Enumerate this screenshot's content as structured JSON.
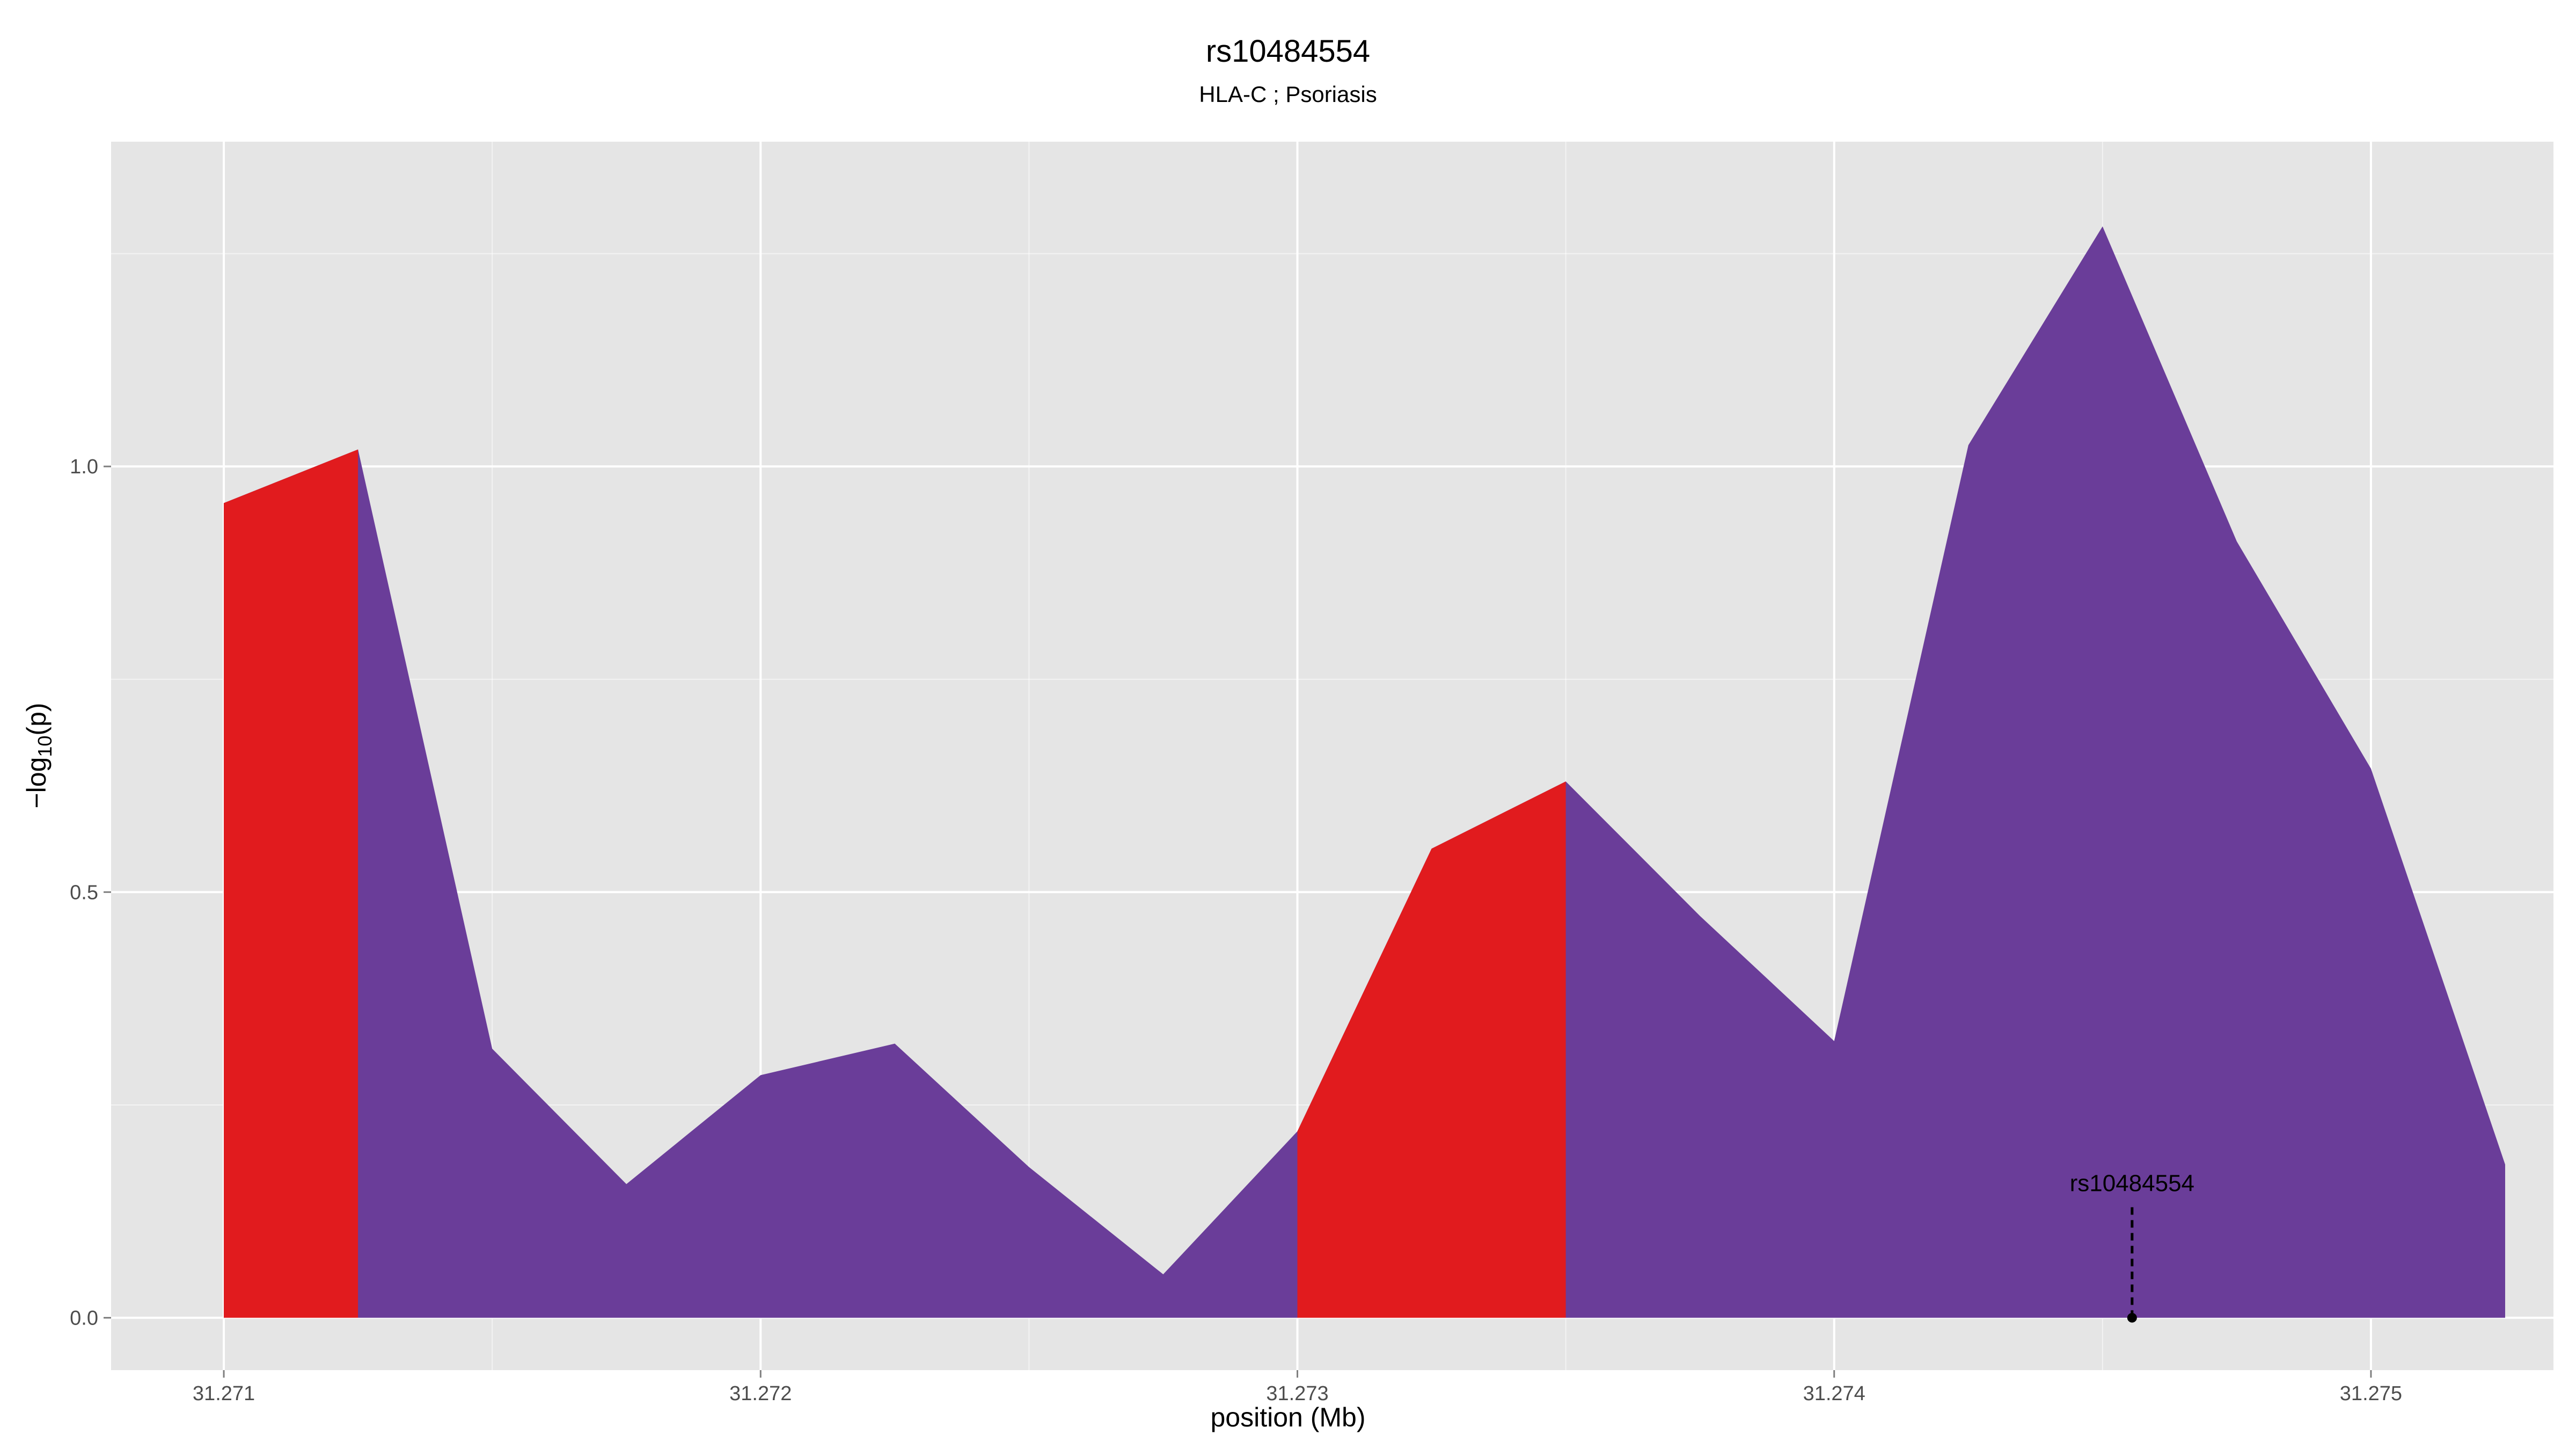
{
  "chart_data": {
    "type": "area",
    "title": "rs10484554",
    "subtitle": "HLA-C ; Psoriasis",
    "xlabel": "position (Mb)",
    "ylabel": "-log10(p)",
    "xlim": [
      31.27079,
      31.27534
    ],
    "ylim": [
      -0.0615,
      1.3815
    ],
    "x_ticks": [
      31.271,
      31.272,
      31.273,
      31.274,
      31.275
    ],
    "x_tick_labels": [
      "31.271",
      "31.272",
      "31.273",
      "31.274",
      "31.275"
    ],
    "y_ticks": [
      0.0,
      0.5,
      1.0
    ],
    "y_tick_labels": [
      "0.0",
      "0.5",
      "1.0"
    ],
    "grid": true,
    "x": [
      31.271,
      31.27125,
      31.2715,
      31.27175,
      31.272,
      31.27225,
      31.2725,
      31.27275,
      31.273,
      31.27325,
      31.2735,
      31.27375,
      31.274,
      31.27425,
      31.2745,
      31.27475,
      31.275,
      31.27525
    ],
    "y": [
      0.957,
      1.02,
      0.316,
      0.157,
      0.285,
      0.322,
      0.177,
      0.051,
      0.219,
      0.551,
      0.63,
      0.472,
      0.325,
      1.025,
      1.282,
      0.912,
      0.645,
      0.18
    ],
    "highlight_regions": [
      {
        "from": 31.271,
        "to": 31.27125
      },
      {
        "from": 31.273,
        "to": 31.2735
      }
    ],
    "colors": {
      "area": "#6a3d99",
      "highlight": "#e11b1e",
      "panel": "#e5e5e5",
      "grid": "#ffffff"
    },
    "annotation": {
      "label": "rs10484554",
      "x": 31.274555,
      "y": 0.0
    }
  }
}
